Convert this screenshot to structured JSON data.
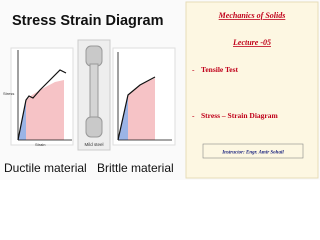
{
  "slide": {
    "title": "Stress Strain Diagram",
    "left_graph": {
      "y_label": "Stress",
      "x_label": "Strain"
    },
    "specimen_label": "Mild steel",
    "captions": [
      "Ductile material",
      "Brittle material"
    ],
    "panel": {
      "course": "Mechanics of Solids",
      "lecture": "Lecture -05",
      "items": [
        "Tensile Test",
        "Stress – Strain Diagram"
      ],
      "instructor": "Instructor: Engr. Amir Sohail"
    }
  }
}
